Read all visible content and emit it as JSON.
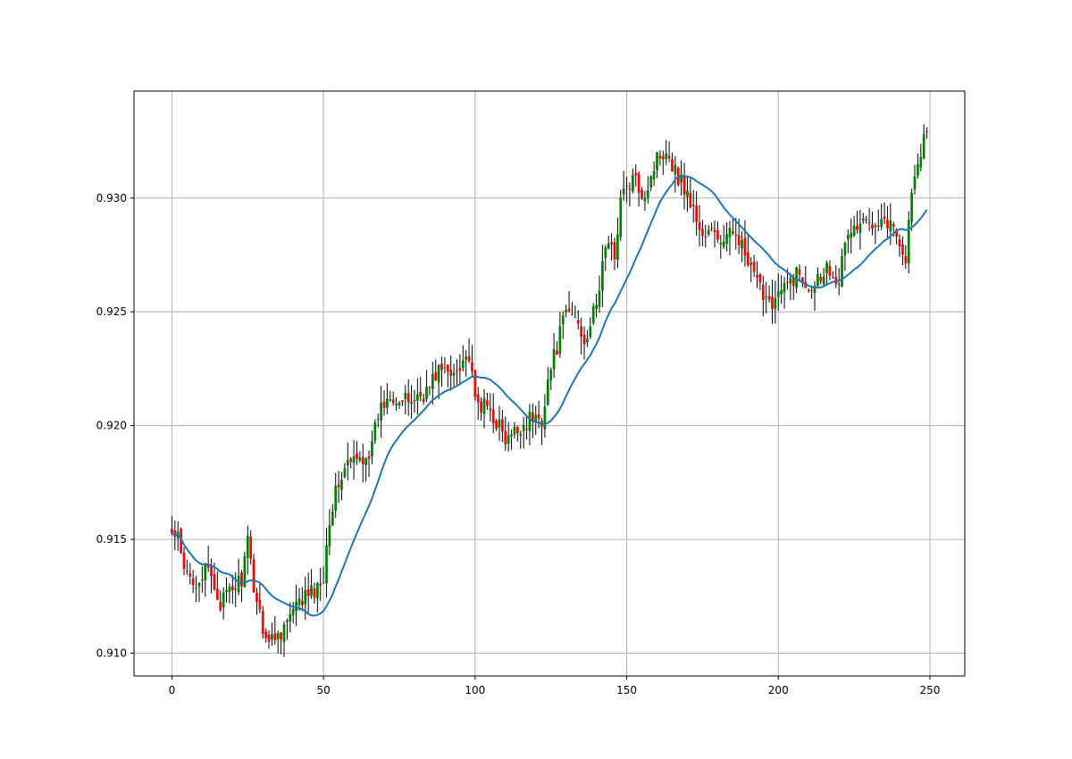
{
  "chart_data": {
    "type": "candlestick",
    "xlim": [
      -12.5,
      261.5
    ],
    "ylim": [
      0.909,
      0.9347
    ],
    "x_ticks": [
      0,
      50,
      100,
      150,
      200,
      250
    ],
    "x_tick_labels": [
      "0",
      "50",
      "100",
      "150",
      "200",
      "250"
    ],
    "y_ticks": [
      0.91,
      0.915,
      0.92,
      0.925,
      0.93
    ],
    "y_tick_labels": [
      "0.910",
      "0.915",
      "0.920",
      "0.925",
      "0.930"
    ],
    "grid": true,
    "colors": {
      "bullish": "#008000",
      "bearish": "#ff0000",
      "wick": "#000000",
      "moving_average": "#1f77b4",
      "grid": "#b0b0b0"
    },
    "price_anchors": [
      [
        0,
        0.9152
      ],
      [
        2,
        0.915
      ],
      [
        4,
        0.9135
      ],
      [
        8,
        0.9132
      ],
      [
        12,
        0.9136
      ],
      [
        16,
        0.9122
      ],
      [
        20,
        0.9128
      ],
      [
        23,
        0.9133
      ],
      [
        25,
        0.9148
      ],
      [
        27,
        0.913
      ],
      [
        30,
        0.9112
      ],
      [
        32,
        0.9105
      ],
      [
        36,
        0.911
      ],
      [
        40,
        0.9118
      ],
      [
        44,
        0.9125
      ],
      [
        48,
        0.9128
      ],
      [
        50,
        0.9135
      ],
      [
        52,
        0.916
      ],
      [
        55,
        0.9175
      ],
      [
        58,
        0.9183
      ],
      [
        62,
        0.9185
      ],
      [
        66,
        0.919
      ],
      [
        68,
        0.9205
      ],
      [
        72,
        0.9215
      ],
      [
        76,
        0.921
      ],
      [
        80,
        0.9212
      ],
      [
        84,
        0.9215
      ],
      [
        88,
        0.9225
      ],
      [
        92,
        0.9222
      ],
      [
        96,
        0.923
      ],
      [
        98,
        0.923
      ],
      [
        100,
        0.921
      ],
      [
        104,
        0.9208
      ],
      [
        108,
        0.92
      ],
      [
        110,
        0.9192
      ],
      [
        114,
        0.9198
      ],
      [
        118,
        0.9203
      ],
      [
        122,
        0.9203
      ],
      [
        124,
        0.922
      ],
      [
        127,
        0.9235
      ],
      [
        130,
        0.925
      ],
      [
        133,
        0.9248
      ],
      [
        136,
        0.9238
      ],
      [
        140,
        0.9252
      ],
      [
        143,
        0.928
      ],
      [
        146,
        0.9275
      ],
      [
        148,
        0.93
      ],
      [
        152,
        0.9308
      ],
      [
        156,
        0.9302
      ],
      [
        158,
        0.931
      ],
      [
        160,
        0.9318
      ],
      [
        163,
        0.9322
      ],
      [
        166,
        0.9312
      ],
      [
        169,
        0.9305
      ],
      [
        172,
        0.9295
      ],
      [
        175,
        0.9283
      ],
      [
        178,
        0.9285
      ],
      [
        182,
        0.928
      ],
      [
        186,
        0.9287
      ],
      [
        190,
        0.927
      ],
      [
        194,
        0.926
      ],
      [
        198,
        0.9255
      ],
      [
        202,
        0.926
      ],
      [
        206,
        0.9267
      ],
      [
        210,
        0.9262
      ],
      [
        213,
        0.9265
      ],
      [
        216,
        0.927
      ],
      [
        220,
        0.9265
      ],
      [
        223,
        0.9285
      ],
      [
        226,
        0.9287
      ],
      [
        230,
        0.929
      ],
      [
        234,
        0.9292
      ],
      [
        237,
        0.9288
      ],
      [
        240,
        0.9282
      ],
      [
        242,
        0.9272
      ],
      [
        244,
        0.9305
      ],
      [
        246,
        0.9312
      ],
      [
        248,
        0.9325
      ],
      [
        249,
        0.9332
      ]
    ],
    "moving_average_period": 20
  }
}
